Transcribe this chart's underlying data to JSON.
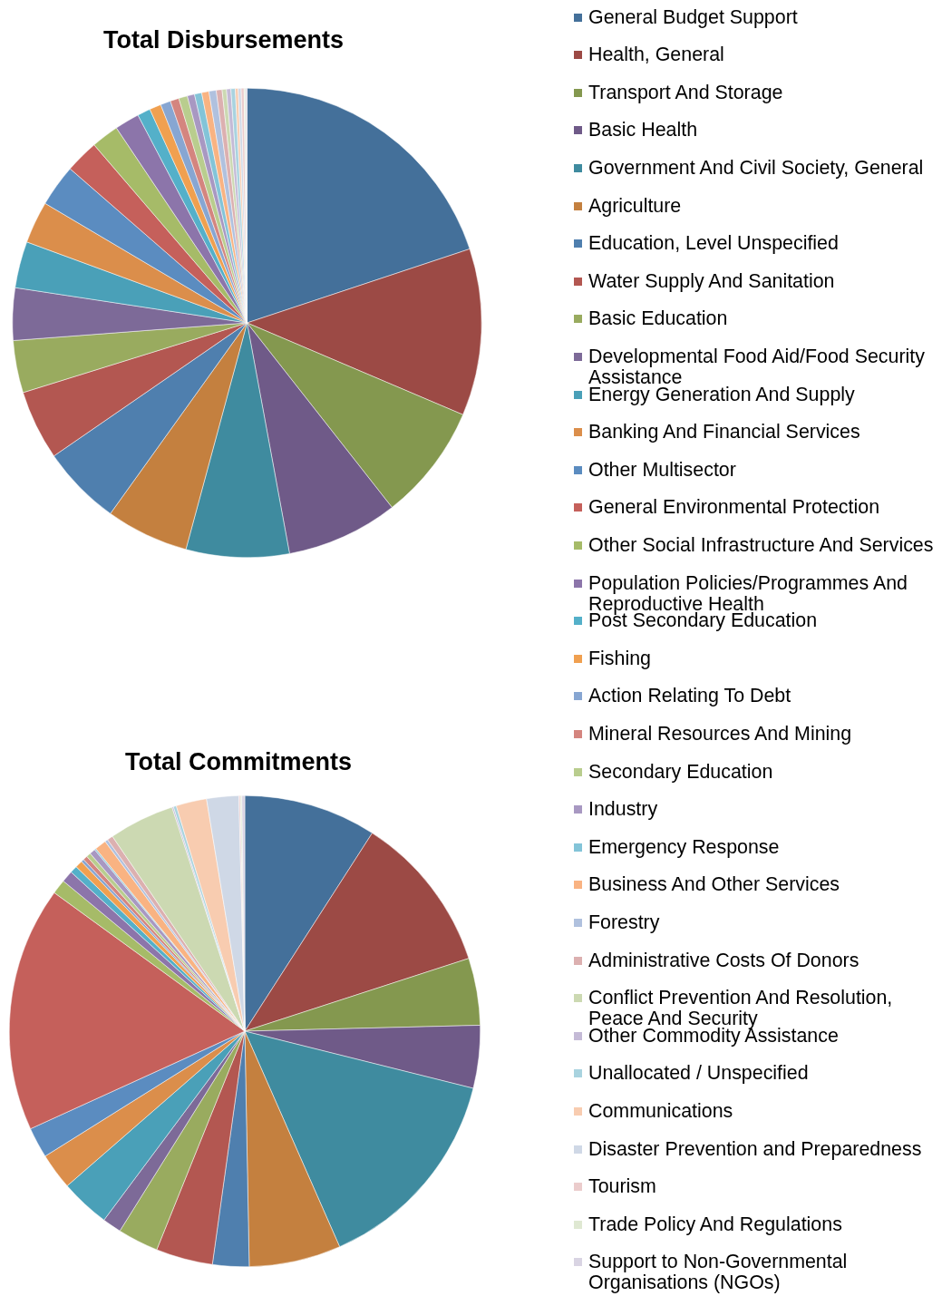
{
  "chart_data": {
    "type": "pie",
    "legend": "right",
    "categories": [
      "General Budget Support",
      "Health, General",
      "Transport And Storage",
      "Basic Health",
      "Government And Civil Society, General",
      "Agriculture",
      "Education, Level Unspecified",
      "Water Supply And Sanitation",
      "Basic Education",
      "Developmental Food Aid/Food Security Assistance",
      "Energy Generation And Supply",
      "Banking And Financial Services",
      "Other Multisector",
      "General Environmental Protection",
      "Other Social Infrastructure And Services",
      "Population Policies/Programmes And Reproductive Health",
      "Post Secondary Education",
      "Fishing",
      "Action Relating To Debt",
      "Mineral Resources And Mining",
      "Secondary Education",
      "Industry",
      "Emergency Response",
      "Business And Other Services",
      "Forestry",
      "Administrative Costs Of Donors",
      "Conflict Prevention And Resolution, Peace And Security",
      "Other Commodity Assistance",
      "Unallocated / Unspecified",
      "Communications",
      "Disaster Prevention and Preparedness",
      "Tourism",
      "Trade Policy And Regulations",
      "Support to Non-Governmental Organisations (NGOs)"
    ],
    "colors": [
      "#44709a",
      "#9c4a45",
      "#84984f",
      "#6f5a88",
      "#3f8b9f",
      "#c4803f",
      "#4f7fae",
      "#b35751",
      "#99ab5f",
      "#7d6a98",
      "#4aa0b8",
      "#db8e4b",
      "#5b8cc0",
      "#c5605b",
      "#a6bb68",
      "#8c75aa",
      "#54b0c9",
      "#f0a050",
      "#87a6d2",
      "#d4857f",
      "#b9cd8e",
      "#a898c2",
      "#83c4d8",
      "#f9b382",
      "#b0c1de",
      "#dcb0b0",
      "#ccd9b2",
      "#c4bad6",
      "#a9d3df",
      "#f8ccb0",
      "#cfd8e6",
      "#ebcccc",
      "#dfe8d2",
      "#d9d4e3"
    ],
    "series": [
      {
        "name": "Total Disbursements",
        "values": [
          19.9,
          11.5,
          8.0,
          7.7,
          7.1,
          5.7,
          5.5,
          4.8,
          3.6,
          3.6,
          3.2,
          2.9,
          2.9,
          2.3,
          1.9,
          1.7,
          0.9,
          0.8,
          0.7,
          0.6,
          0.6,
          0.5,
          0.5,
          0.5,
          0.5,
          0.4,
          0.3,
          0.3,
          0.3,
          0.2,
          0.2,
          0.2,
          0.1,
          0.1
        ]
      },
      {
        "name": "Total Commitments",
        "values": [
          9.1,
          10.9,
          4.6,
          4.3,
          14.5,
          6.3,
          2.5,
          3.9,
          2.8,
          1.3,
          3.4,
          2.5,
          2.1,
          16.8,
          1.0,
          0.8,
          0.5,
          0.5,
          0.2,
          0.3,
          0.3,
          0.4,
          0.1,
          0.8,
          0.2,
          0.4,
          4.5,
          0.1,
          0.2,
          2.1,
          2.2,
          0.1,
          0.1,
          0.2
        ]
      }
    ]
  }
}
